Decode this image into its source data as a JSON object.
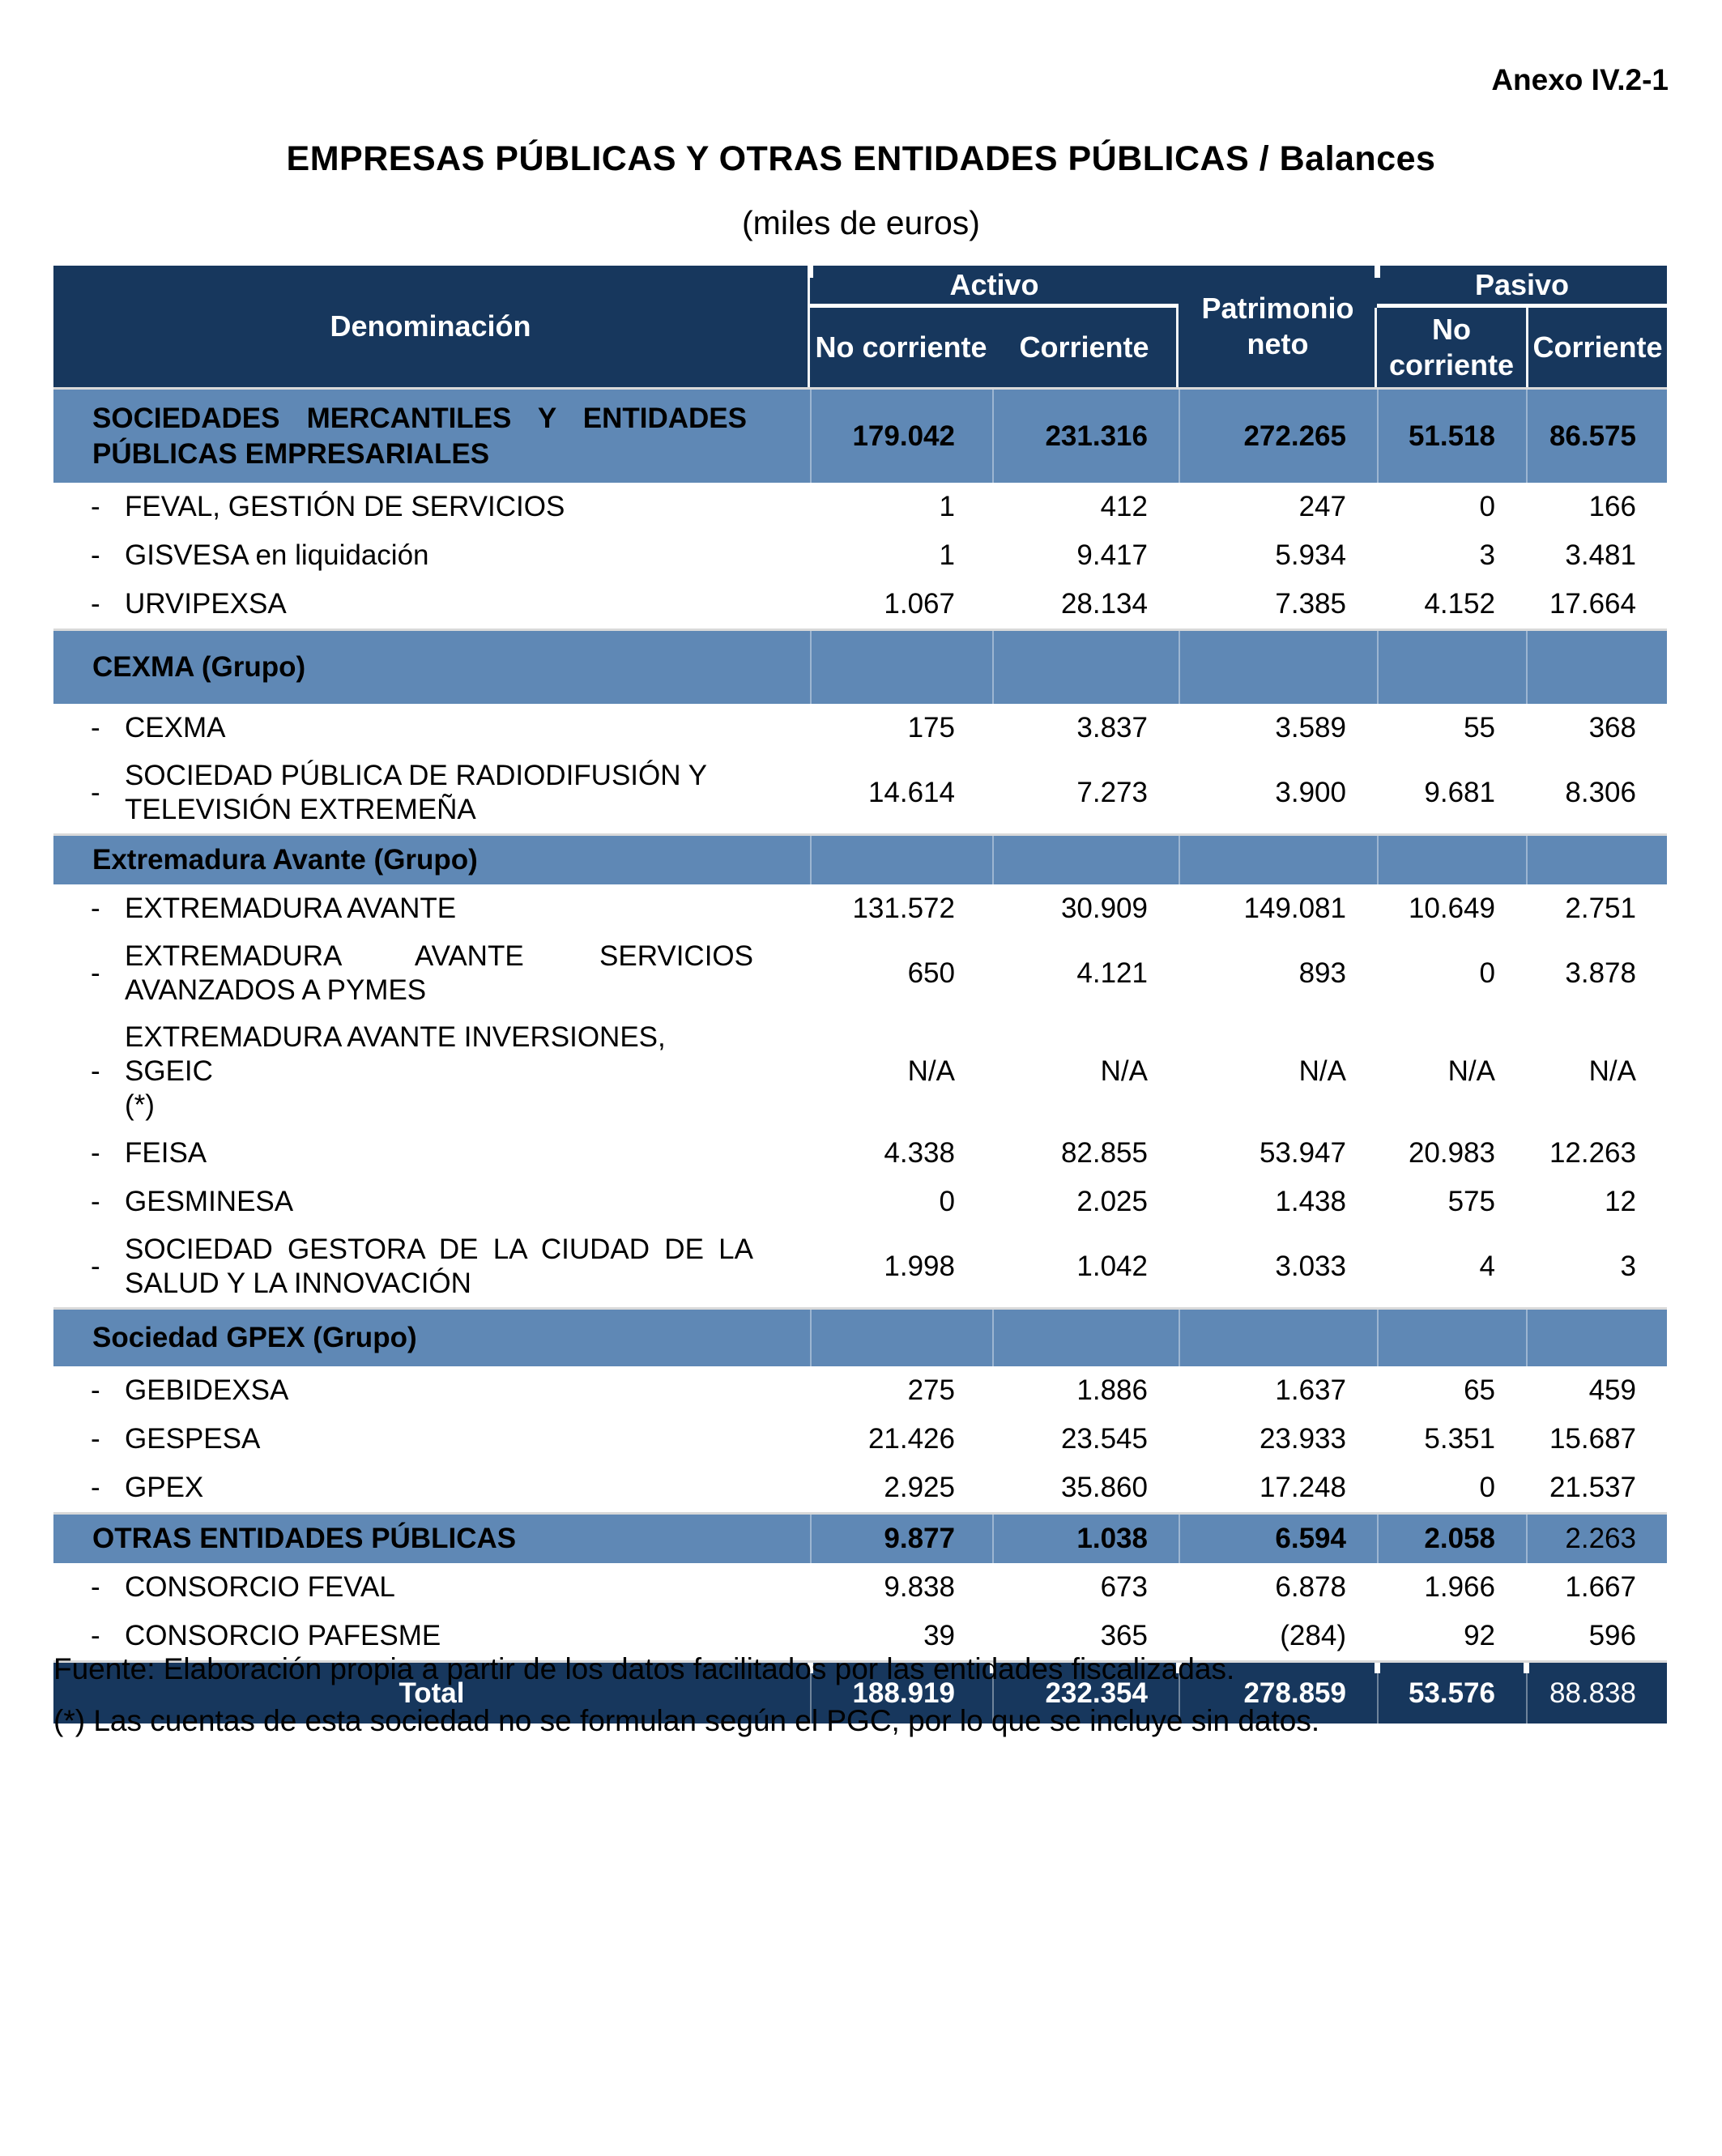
{
  "page": {
    "annex": "Anexo IV.2-1",
    "title": "EMPRESAS PÚBLICAS Y OTRAS ENTIDADES PÚBLICAS  /  Balances",
    "subtitle": "(miles de euros)",
    "footnotes": [
      "Fuente: Elaboración propia a partir de los datos facilitados por las entidades fiscalizadas.",
      "(*) Las cuentas de esta sociedad no se formulan según el PGC, por lo que se incluye sin datos."
    ]
  },
  "colors": {
    "header_navy": "#17375D",
    "section_blue": "#5F88B5",
    "text": "#000000",
    "header_text": "#FFFFFF"
  },
  "table": {
    "unit_note": "(miles de euros)",
    "header": {
      "denomination": "Denominación",
      "activo": "Activo",
      "patrimonio": "Patrimonio neto",
      "pasivo": "Pasivo",
      "subcols": [
        "No corriente",
        "Corriente",
        "No corriente",
        "Corriente"
      ]
    },
    "rows": [
      {
        "kind": "section",
        "variant": "values",
        "justify": true,
        "lines": [
          "SOCIEDADES MERCANTILES Y ENTIDADES",
          "PÚBLICAS EMPRESARIALES"
        ],
        "values": [
          "179.042",
          "231.316",
          "272.265",
          "51.518",
          "86.575"
        ],
        "bold": [
          true,
          true,
          true,
          true,
          true
        ]
      },
      {
        "kind": "item",
        "lines": [
          "FEVAL, GESTIÓN DE SERVICIOS"
        ],
        "values": [
          "1",
          "412",
          "247",
          "0",
          "166"
        ]
      },
      {
        "kind": "item",
        "lines": [
          "GISVESA en liquidación"
        ],
        "values": [
          "1",
          "9.417",
          "5.934",
          "3",
          "3.481"
        ]
      },
      {
        "kind": "item",
        "lines": [
          "URVIPEXSA"
        ],
        "values": [
          "1.067",
          "28.134",
          "7.385",
          "4.152",
          "17.664"
        ]
      },
      {
        "kind": "section",
        "variant": "tall",
        "lines": [
          "CEXMA (Grupo)"
        ],
        "values": [
          "",
          "",
          "",
          "",
          ""
        ]
      },
      {
        "kind": "item",
        "lines": [
          "CEXMA"
        ],
        "values": [
          "175",
          "3.837",
          "3.589",
          "55",
          "368"
        ]
      },
      {
        "kind": "item",
        "lines": [
          "SOCIEDAD PÚBLICA DE RADIODIFUSIÓN Y",
          "TELEVISIÓN EXTREMEÑA"
        ],
        "values": [
          "14.614",
          "7.273",
          "3.900",
          "9.681",
          "8.306"
        ]
      },
      {
        "kind": "section",
        "variant": "short",
        "lines": [
          "Extremadura Avante (Grupo)"
        ],
        "values": [
          "",
          "",
          "",
          "",
          ""
        ]
      },
      {
        "kind": "item",
        "lines": [
          "EXTREMADURA AVANTE"
        ],
        "values": [
          "131.572",
          "30.909",
          "149.081",
          "10.649",
          "2.751"
        ]
      },
      {
        "kind": "item",
        "justify": true,
        "lines": [
          "EXTREMADURA AVANTE SERVICIOS",
          "AVANZADOS A PYMES"
        ],
        "values": [
          "650",
          "4.121",
          "893",
          "0",
          "3.878"
        ]
      },
      {
        "kind": "item",
        "lines": [
          "EXTREMADURA AVANTE INVERSIONES, SGEIC",
          "(*)"
        ],
        "values": [
          "N/A",
          "N/A",
          "N/A",
          "N/A",
          "N/A"
        ]
      },
      {
        "kind": "item",
        "lines": [
          "FEISA"
        ],
        "values": [
          "4.338",
          "82.855",
          "53.947",
          "20.983",
          "12.263"
        ]
      },
      {
        "kind": "item",
        "lines": [
          "GESMINESA"
        ],
        "values": [
          "0",
          "2.025",
          "1.438",
          "575",
          "12"
        ]
      },
      {
        "kind": "item",
        "justify": true,
        "lines": [
          "SOCIEDAD GESTORA DE LA CIUDAD DE LA",
          "SALUD Y LA INNOVACIÓN"
        ],
        "values": [
          "1.998",
          "1.042",
          "3.033",
          "4",
          "3"
        ]
      },
      {
        "kind": "section",
        "variant": "mid",
        "lines": [
          "Sociedad GPEX (Grupo)"
        ],
        "values": [
          "",
          "",
          "",
          "",
          ""
        ]
      },
      {
        "kind": "item",
        "lines": [
          "GEBIDEXSA"
        ],
        "values": [
          "275",
          "1.886",
          "1.637",
          "65",
          "459"
        ]
      },
      {
        "kind": "item",
        "lines": [
          "GESPESA"
        ],
        "values": [
          "21.426",
          "23.545",
          "23.933",
          "5.351",
          "15.687"
        ]
      },
      {
        "kind": "item",
        "lines": [
          "GPEX"
        ],
        "values": [
          "2.925",
          "35.860",
          "17.248",
          "0",
          "21.537"
        ]
      },
      {
        "kind": "section",
        "variant": "short",
        "lines": [
          "OTRAS ENTIDADES PÚBLICAS"
        ],
        "values": [
          "9.877",
          "1.038",
          "6.594",
          "2.058",
          "2.263"
        ],
        "bold": [
          true,
          true,
          true,
          true,
          false
        ]
      },
      {
        "kind": "item",
        "lines": [
          "CONSORCIO FEVAL"
        ],
        "values": [
          "9.838",
          "673",
          "6.878",
          "1.966",
          "1.667"
        ]
      },
      {
        "kind": "item",
        "lines": [
          "CONSORCIO PAFESME"
        ],
        "values": [
          "39",
          "365",
          "(284)",
          "92",
          "596"
        ]
      },
      {
        "kind": "total",
        "lines": [
          "Total"
        ],
        "values": [
          "188.919",
          "232.354",
          "278.859",
          "53.576",
          "88.838"
        ],
        "bold": [
          true,
          true,
          true,
          true,
          false
        ]
      }
    ]
  }
}
